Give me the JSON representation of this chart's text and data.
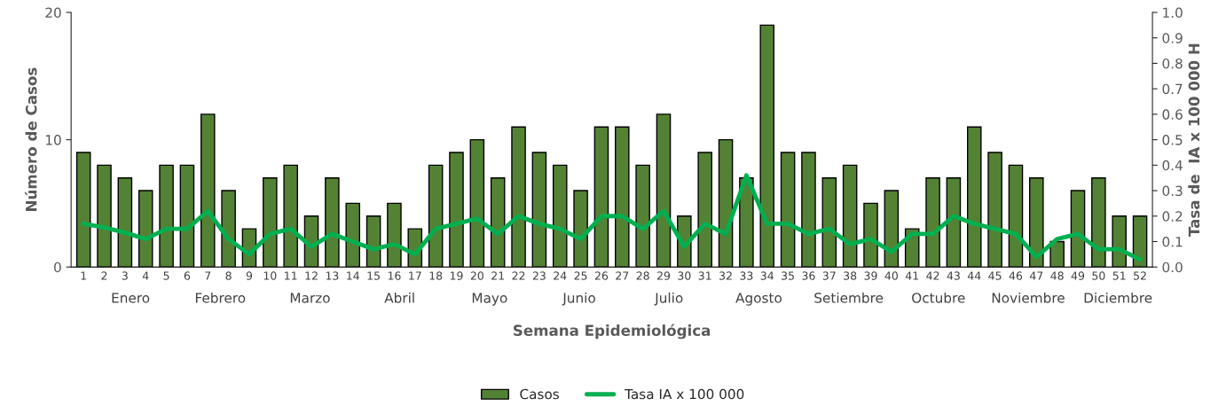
{
  "chart_data": {
    "type": "bar",
    "xlabel": "Semana Epidemiológica",
    "ylabel": "Número de Casos",
    "y2label": "Tasa de  IA x 100 000 H",
    "categories": [
      "1",
      "2",
      "3",
      "4",
      "5",
      "6",
      "7",
      "8",
      "9",
      "10",
      "11",
      "12",
      "13",
      "14",
      "15",
      "16",
      "17",
      "18",
      "19",
      "20",
      "21",
      "22",
      "23",
      "24",
      "25",
      "26",
      "27",
      "28",
      "29",
      "30",
      "31",
      "32",
      "33",
      "34",
      "35",
      "36",
      "37",
      "38",
      "39",
      "40",
      "41",
      "42",
      "43",
      "44",
      "45",
      "46",
      "47",
      "48",
      "49",
      "50",
      "51",
      "52"
    ],
    "series": [
      {
        "name": "Casos",
        "color": "#548235",
        "values": [
          9,
          8,
          7,
          6,
          8,
          8,
          12,
          6,
          3,
          7,
          8,
          4,
          7,
          5,
          4,
          5,
          3,
          8,
          9,
          10,
          7,
          11,
          9,
          8,
          6,
          11,
          11,
          8,
          12,
          4,
          9,
          10,
          7,
          19,
          9,
          9,
          7,
          8,
          5,
          6,
          3,
          7,
          7,
          11,
          9,
          8,
          7,
          2,
          6,
          7,
          4,
          4
        ]
      },
      {
        "name": "Tasa IA x 100 000",
        "type": "line",
        "axis": "y2",
        "color": "#00b050",
        "values": [
          0.17,
          0.155,
          0.135,
          0.11,
          0.15,
          0.15,
          0.22,
          0.11,
          0.05,
          0.13,
          0.15,
          0.08,
          0.13,
          0.1,
          0.07,
          0.09,
          0.05,
          0.15,
          0.17,
          0.19,
          0.13,
          0.2,
          0.17,
          0.15,
          0.11,
          0.2,
          0.2,
          0.15,
          0.22,
          0.08,
          0.17,
          0.13,
          0.36,
          0.17,
          0.17,
          0.13,
          0.15,
          0.09,
          0.11,
          0.06,
          0.13,
          0.13,
          0.2,
          0.17,
          0.15,
          0.13,
          0.04,
          0.11,
          0.13,
          0.07,
          0.07,
          0.03
        ]
      }
    ],
    "ylim": [
      0,
      20
    ],
    "yticks": [
      0,
      10,
      20
    ],
    "y2lim": [
      0,
      1.0
    ],
    "y2ticks": [
      {
        "value": 0,
        "label": "0.0"
      },
      {
        "value": 0.1,
        "label": "0.1"
      },
      {
        "value": 0.2,
        "label": "0.2"
      },
      {
        "value": 0.3,
        "label": "0.3"
      },
      {
        "value": 0.4,
        "label": "0.4"
      },
      {
        "value": 0.5,
        "label": "0.5"
      },
      {
        "value": 0.6,
        "label": "0.6"
      },
      {
        "value": 0.7,
        "label": "0.7"
      },
      {
        "value": 0.8,
        "label": "0.8"
      },
      {
        "value": 0.9,
        "label": "0.9"
      },
      {
        "value": 1.0,
        "label": "1.0"
      }
    ],
    "annotations": [
      "Enero",
      "Febrero",
      "Marzo",
      "Abril",
      "Mayo",
      "Junio",
      "Julio",
      "Agosto",
      "Setiembre",
      "Octubre",
      "Noviembre",
      "Diciembre"
    ],
    "legend": "bottom",
    "grid": false,
    "marker": "none",
    "line_style": "solid"
  }
}
